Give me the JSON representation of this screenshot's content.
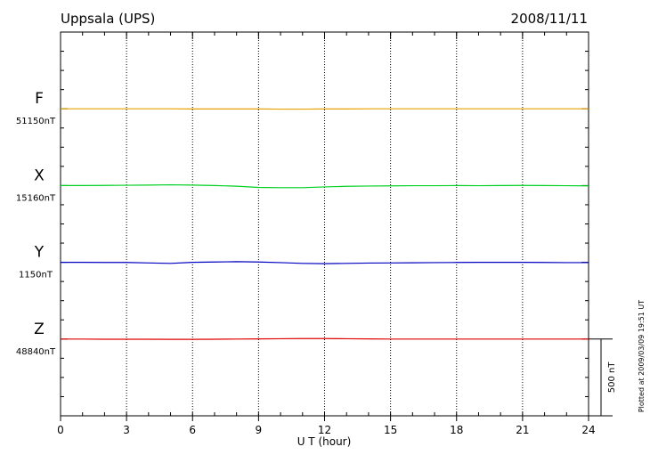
{
  "chart_data": {
    "type": "line",
    "title": "Uppsala (UPS)",
    "date": "2008/11/11",
    "xlabel": "U T (hour)",
    "note": "Plotted at 2009/03/09 19:51 UT",
    "scale_bar": {
      "value": 500,
      "label": "500 nT"
    },
    "xlim": [
      0,
      24
    ],
    "xticks": [
      0,
      3,
      6,
      9,
      12,
      15,
      18,
      21,
      24
    ],
    "grid": true,
    "x": [
      0,
      1,
      2,
      3,
      4,
      5,
      6,
      7,
      8,
      9,
      10,
      11,
      12,
      13,
      14,
      15,
      16,
      17,
      18,
      19,
      20,
      21,
      22,
      23,
      24
    ],
    "series": [
      {
        "name": "F",
        "color": "#e8a000",
        "baseline": {
          "value": 51150,
          "label": "51150nT"
        },
        "values": [
          51150,
          51150,
          51150,
          51150,
          51150,
          51150,
          51149,
          51149,
          51149,
          51149,
          51148,
          51148,
          51149,
          51149,
          51150,
          51150,
          51150,
          51150,
          51150,
          51150,
          51150,
          51150,
          51150,
          51150,
          51150
        ]
      },
      {
        "name": "X",
        "color": "#00d020",
        "baseline": {
          "value": 15160,
          "label": "15160nT"
        },
        "values": [
          15160,
          15160,
          15161,
          15162,
          15163,
          15165,
          15163,
          15160,
          15156,
          15148,
          15146,
          15146,
          15151,
          15155,
          15157,
          15158,
          15159,
          15159,
          15160,
          15159,
          15160,
          15161,
          15160,
          15159,
          15158
        ]
      },
      {
        "name": "Y",
        "color": "#0000c0",
        "baseline": {
          "value": 1150,
          "label": "1150nT"
        },
        "values": [
          1150,
          1150,
          1149,
          1149,
          1146,
          1143,
          1150,
          1152,
          1154,
          1152,
          1148,
          1143,
          1141,
          1143,
          1145,
          1146,
          1147,
          1148,
          1149,
          1150,
          1150,
          1150,
          1149,
          1148,
          1148
        ]
      },
      {
        "name": "Z",
        "color": "#e00000",
        "baseline": {
          "value": 48840,
          "label": "48840nT"
        },
        "values": [
          48840,
          48840,
          48839,
          48839,
          48839,
          48838,
          48838,
          48839,
          48840,
          48841,
          48842,
          48843,
          48843,
          48842,
          48841,
          48840,
          48840,
          48840,
          48840,
          48840,
          48840,
          48840,
          48840,
          48840,
          48840
        ]
      }
    ]
  }
}
